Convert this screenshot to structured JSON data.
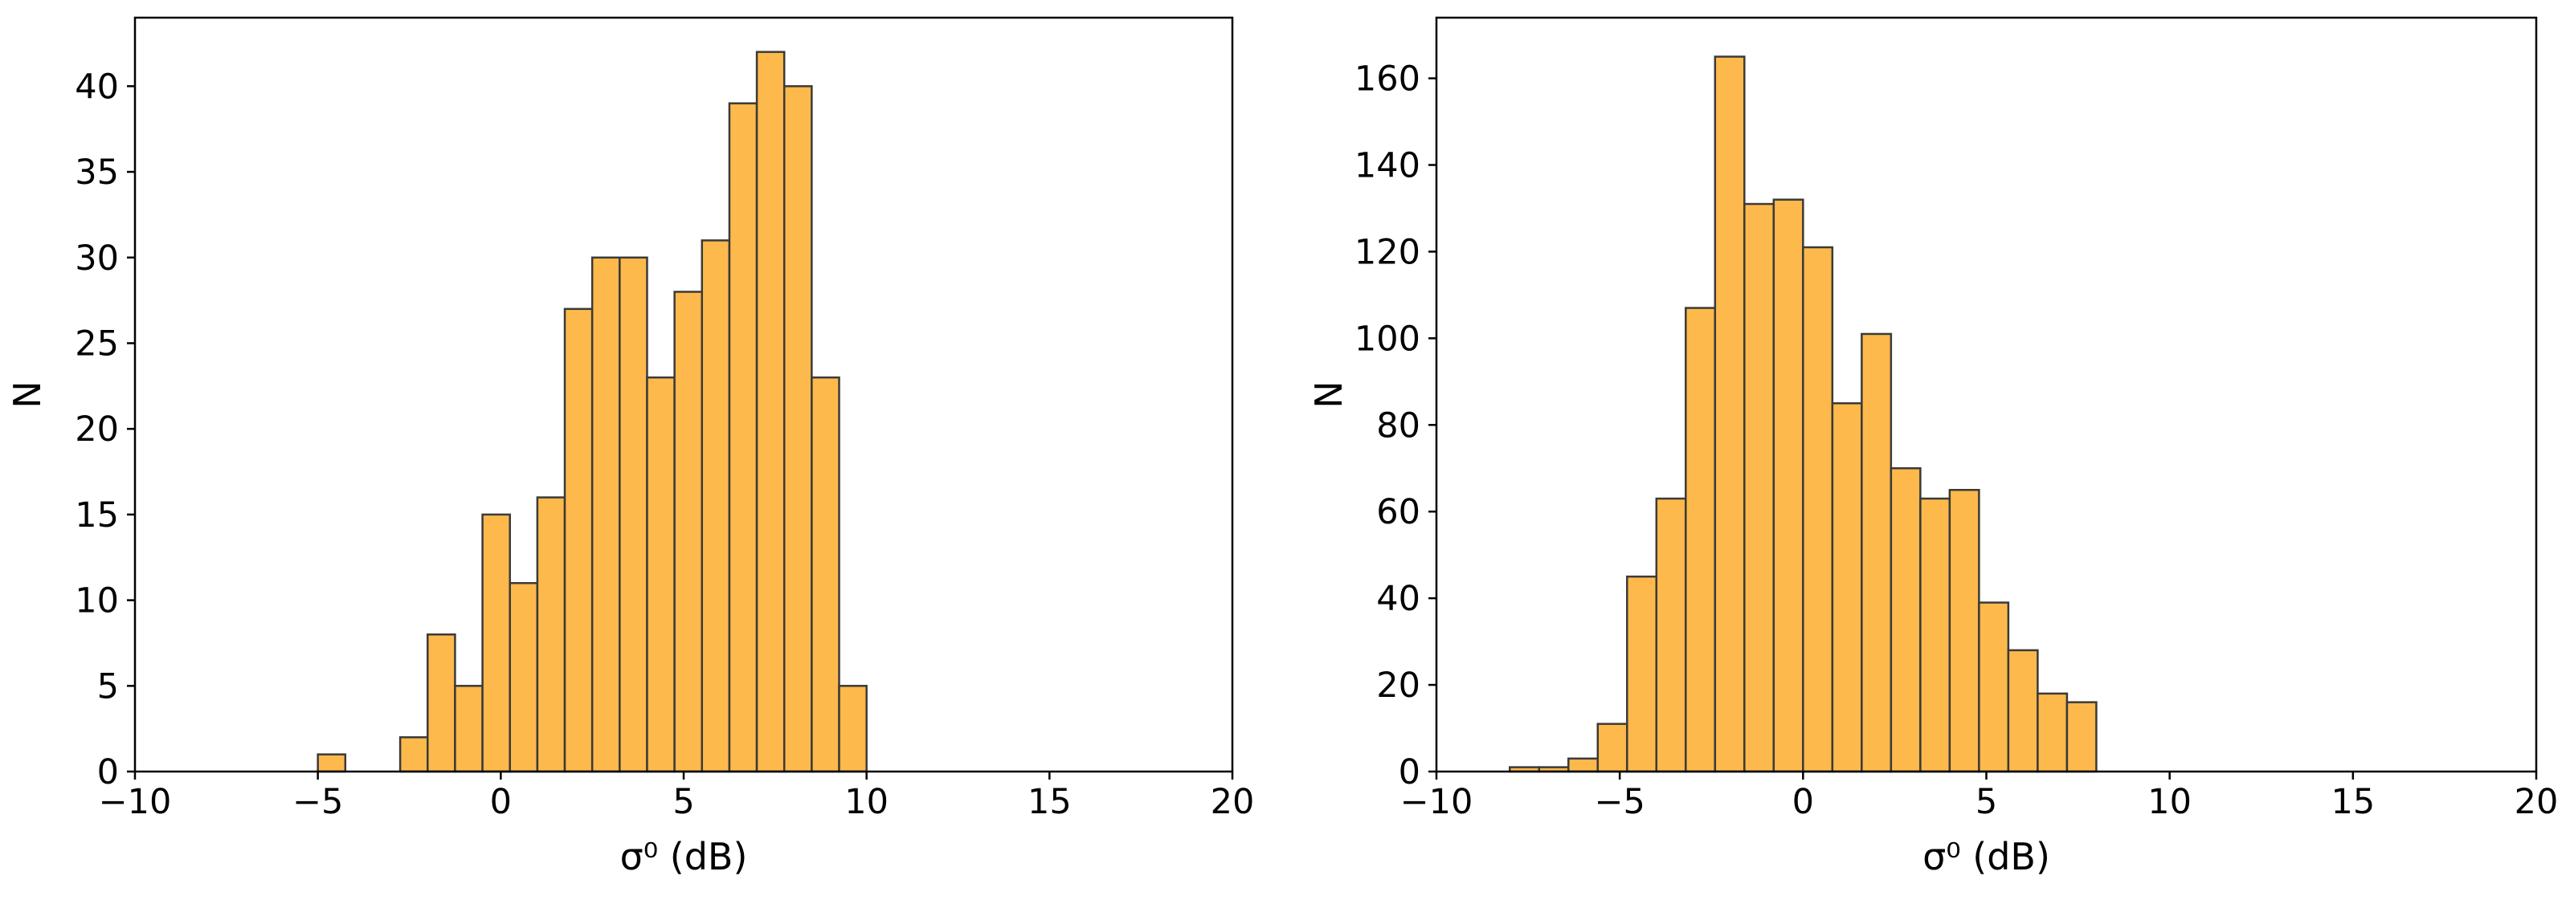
{
  "colors": {
    "bar_fill": "#FDB94B",
    "bar_edge": "#3a3a3a",
    "axis": "#000000",
    "background": "#ffffff"
  },
  "chart_data": [
    {
      "type": "bar",
      "subtype": "histogram",
      "xlabel": "σ⁰ (dB)",
      "ylabel": "N",
      "xlim": [
        -10,
        20
      ],
      "ylim": [
        0,
        44
      ],
      "xticks": [
        -10,
        -5,
        0,
        5,
        10,
        15,
        20
      ],
      "yticks": [
        0,
        5,
        10,
        15,
        20,
        25,
        30,
        35,
        40
      ],
      "grid": false,
      "bins": [
        {
          "x0": -5.0,
          "x1": -4.25,
          "count": 1
        },
        {
          "x0": -4.25,
          "x1": -3.5,
          "count": 0
        },
        {
          "x0": -3.5,
          "x1": -2.75,
          "count": 0
        },
        {
          "x0": -2.75,
          "x1": -2.0,
          "count": 2
        },
        {
          "x0": -2.0,
          "x1": -1.25,
          "count": 8
        },
        {
          "x0": -1.25,
          "x1": -0.5,
          "count": 5
        },
        {
          "x0": -0.5,
          "x1": 0.25,
          "count": 15
        },
        {
          "x0": 0.25,
          "x1": 1.0,
          "count": 11
        },
        {
          "x0": 1.0,
          "x1": 1.75,
          "count": 16
        },
        {
          "x0": 1.75,
          "x1": 2.5,
          "count": 27
        },
        {
          "x0": 2.5,
          "x1": 3.25,
          "count": 30
        },
        {
          "x0": 3.25,
          "x1": 4.0,
          "count": 30
        },
        {
          "x0": 4.0,
          "x1": 4.75,
          "count": 23
        },
        {
          "x0": 4.75,
          "x1": 5.5,
          "count": 28
        },
        {
          "x0": 5.5,
          "x1": 6.25,
          "count": 31
        },
        {
          "x0": 6.25,
          "x1": 7.0,
          "count": 39
        },
        {
          "x0": 7.0,
          "x1": 7.75,
          "count": 42
        },
        {
          "x0": 7.75,
          "x1": 8.5,
          "count": 40
        },
        {
          "x0": 8.5,
          "x1": 9.25,
          "count": 23
        },
        {
          "x0": 9.25,
          "x1": 10.0,
          "count": 5
        }
      ]
    },
    {
      "type": "bar",
      "subtype": "histogram",
      "xlabel": "σ⁰ (dB)",
      "ylabel": "N",
      "xlim": [
        -10,
        20
      ],
      "ylim": [
        0,
        174
      ],
      "xticks": [
        -10,
        -5,
        0,
        5,
        10,
        15,
        20
      ],
      "yticks": [
        0,
        20,
        40,
        60,
        80,
        100,
        120,
        140,
        160
      ],
      "grid": false,
      "bins": [
        {
          "x0": -8.0,
          "x1": -7.2,
          "count": 1
        },
        {
          "x0": -7.2,
          "x1": -6.4,
          "count": 1
        },
        {
          "x0": -6.4,
          "x1": -5.6,
          "count": 3
        },
        {
          "x0": -5.6,
          "x1": -4.8,
          "count": 11
        },
        {
          "x0": -4.8,
          "x1": -4.0,
          "count": 45
        },
        {
          "x0": -4.0,
          "x1": -3.2,
          "count": 63
        },
        {
          "x0": -3.2,
          "x1": -2.4,
          "count": 107
        },
        {
          "x0": -2.4,
          "x1": -1.6,
          "count": 165
        },
        {
          "x0": -1.6,
          "x1": -0.8,
          "count": 131
        },
        {
          "x0": -0.8,
          "x1": 0.0,
          "count": 132
        },
        {
          "x0": 0.0,
          "x1": 0.8,
          "count": 121
        },
        {
          "x0": 0.8,
          "x1": 1.6,
          "count": 85
        },
        {
          "x0": 1.6,
          "x1": 2.4,
          "count": 101
        },
        {
          "x0": 2.4,
          "x1": 3.2,
          "count": 70
        },
        {
          "x0": 3.2,
          "x1": 4.0,
          "count": 63
        },
        {
          "x0": 4.0,
          "x1": 4.8,
          "count": 65
        },
        {
          "x0": 4.8,
          "x1": 5.6,
          "count": 39
        },
        {
          "x0": 5.6,
          "x1": 6.4,
          "count": 28
        },
        {
          "x0": 6.4,
          "x1": 7.2,
          "count": 18
        },
        {
          "x0": 7.2,
          "x1": 8.0,
          "count": 16
        }
      ]
    }
  ]
}
